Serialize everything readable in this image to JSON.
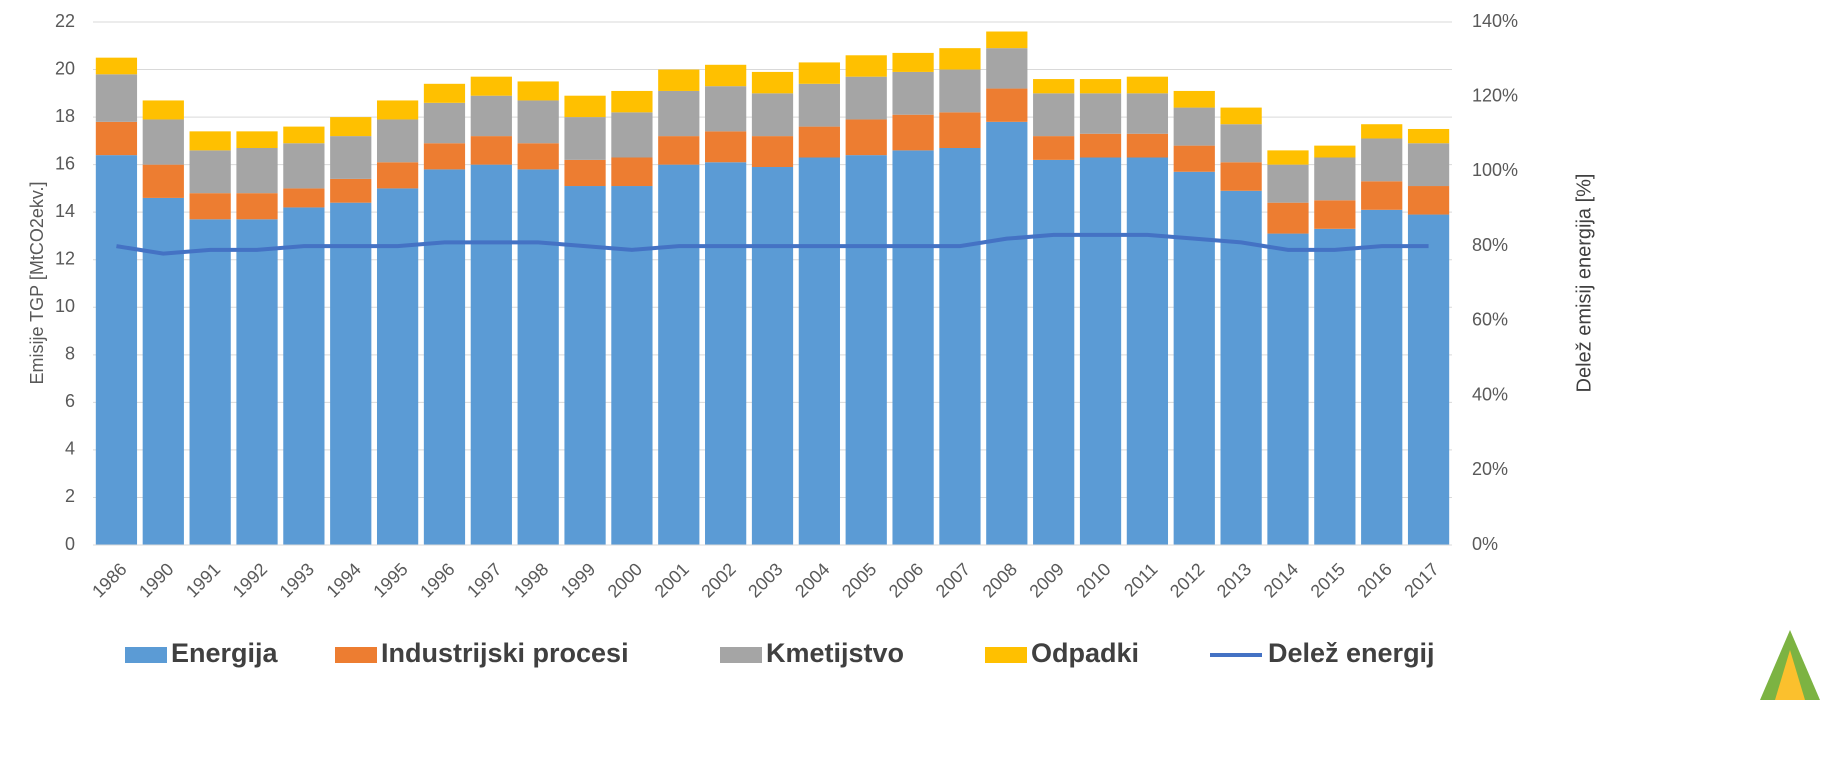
{
  "chart_data": {
    "type": "bar",
    "stacked": true,
    "y_label": "Emisije TGP [MtCO2ekv.]",
    "y2_label": "Delež emisij energija [%]",
    "categories": [
      "1986",
      "1990",
      "1991",
      "1992",
      "1993",
      "1994",
      "1995",
      "1996",
      "1997",
      "1998",
      "1999",
      "2000",
      "2001",
      "2002",
      "2003",
      "2004",
      "2005",
      "2006",
      "2007",
      "2008",
      "2009",
      "2010",
      "2011",
      "2012",
      "2013",
      "2014",
      "2015",
      "2016",
      "2017"
    ],
    "series": [
      {
        "name": "Energija",
        "color": "#5b9bd5",
        "values": [
          16.4,
          14.6,
          13.7,
          13.7,
          14.2,
          14.4,
          15.0,
          15.8,
          16.0,
          15.8,
          15.1,
          15.1,
          16.0,
          16.1,
          15.9,
          16.3,
          16.4,
          16.6,
          16.7,
          17.8,
          16.2,
          16.3,
          16.3,
          15.7,
          14.9,
          13.1,
          13.3,
          14.1,
          13.9
        ]
      },
      {
        "name": "Industrijski procesi",
        "color": "#ed7d31",
        "values": [
          1.4,
          1.4,
          1.1,
          1.1,
          0.8,
          1.0,
          1.1,
          1.1,
          1.2,
          1.1,
          1.1,
          1.2,
          1.2,
          1.3,
          1.3,
          1.3,
          1.5,
          1.5,
          1.5,
          1.4,
          1.0,
          1.0,
          1.0,
          1.1,
          1.2,
          1.3,
          1.2,
          1.2,
          1.2
        ]
      },
      {
        "name": "Kmetijstvo",
        "color": "#a5a5a5",
        "values": [
          2.0,
          1.9,
          1.8,
          1.9,
          1.9,
          1.8,
          1.8,
          1.7,
          1.7,
          1.8,
          1.8,
          1.9,
          1.9,
          1.9,
          1.8,
          1.8,
          1.8,
          1.8,
          1.8,
          1.7,
          1.8,
          1.7,
          1.7,
          1.6,
          1.6,
          1.6,
          1.8,
          1.8,
          1.8
        ]
      },
      {
        "name": "Odpadki",
        "color": "#ffc000",
        "values": [
          0.7,
          0.8,
          0.8,
          0.7,
          0.7,
          0.8,
          0.8,
          0.8,
          0.8,
          0.8,
          0.9,
          0.9,
          0.9,
          0.9,
          0.9,
          0.9,
          0.9,
          0.8,
          0.9,
          0.7,
          0.6,
          0.6,
          0.7,
          0.7,
          0.7,
          0.6,
          0.5,
          0.6,
          0.6
        ]
      },
      {
        "name": "Delež energij",
        "color": "#4472c4",
        "type": "line",
        "axis": "y2",
        "values": [
          80,
          78,
          79,
          79,
          80,
          80,
          80,
          81,
          81,
          81,
          80,
          79,
          80,
          80,
          80,
          80,
          80,
          80,
          80,
          82,
          83,
          83,
          83,
          82,
          81,
          79,
          79,
          80,
          80
        ]
      }
    ],
    "ylim": [
      0,
      22
    ],
    "yticks": [
      0,
      2,
      4,
      6,
      8,
      10,
      12,
      14,
      16,
      18,
      20,
      22
    ],
    "y2lim": [
      0,
      140
    ],
    "y2ticks": [
      {
        "value": 0,
        "label": "0%"
      },
      {
        "value": 20,
        "label": "20%"
      },
      {
        "value": 40,
        "label": "40%"
      },
      {
        "value": 60,
        "label": "60%"
      },
      {
        "value": 80,
        "label": "80%"
      },
      {
        "value": 100,
        "label": "100%"
      },
      {
        "value": 120,
        "label": "120%"
      },
      {
        "value": 140,
        "label": "140%"
      }
    ],
    "grid": true,
    "legend": "bottom"
  }
}
